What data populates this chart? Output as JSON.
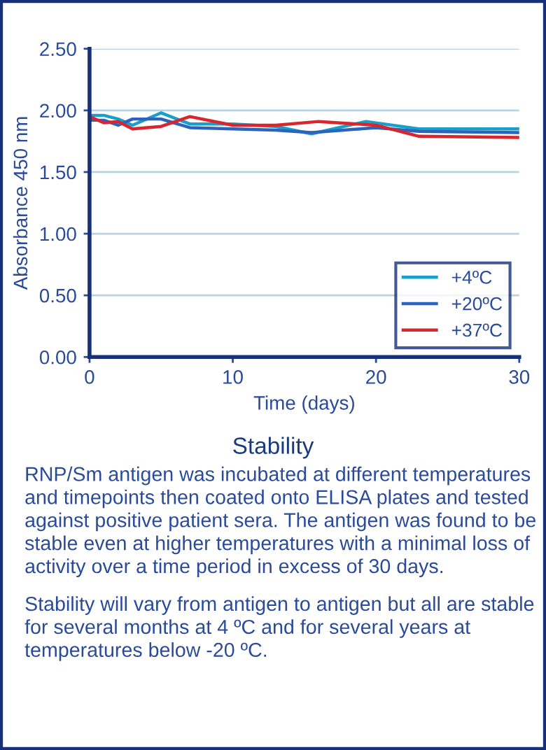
{
  "chart_data": {
    "type": "line",
    "title": "Stability",
    "xlabel": "Time (days)",
    "ylabel": "Absorbance 450 nm",
    "xlim": [
      0,
      30
    ],
    "xticks": [
      0,
      10,
      20,
      30
    ],
    "ylim": [
      0,
      2.5
    ],
    "yticks": [
      {
        "value": 0,
        "label": "0.00"
      },
      {
        "value": 0.5,
        "label": "0.50"
      },
      {
        "value": 1,
        "label": "1.00"
      },
      {
        "value": 1.5,
        "label": "1.50"
      },
      {
        "value": 2,
        "label": "2.00"
      },
      {
        "value": 2.5,
        "label": "2.50"
      }
    ],
    "grid": "y",
    "legend": "bottom right",
    "line_style": "solid",
    "series": [
      {
        "name": "+4ºC",
        "color": "#1aa0c8",
        "x": [
          0,
          1,
          2,
          3,
          5,
          7,
          10,
          13,
          15.5,
          19.3,
          23,
          30
        ],
        "values": [
          1.96,
          1.96,
          1.93,
          1.88,
          1.98,
          1.89,
          1.89,
          1.87,
          1.81,
          1.91,
          1.85,
          1.85
        ]
      },
      {
        "name": "+20ºC",
        "color": "#2c64bd",
        "x": [
          0,
          1,
          2,
          3,
          5,
          7,
          13,
          15.5,
          20,
          23,
          30
        ],
        "values": [
          1.92,
          1.92,
          1.88,
          1.93,
          1.93,
          1.86,
          1.84,
          1.82,
          1.86,
          1.83,
          1.82
        ]
      },
      {
        "name": "+37ºC",
        "color": "#d8262e",
        "x": [
          0,
          1,
          2,
          3,
          5,
          7,
          10,
          13,
          16,
          20,
          23,
          30
        ],
        "values": [
          1.95,
          1.9,
          1.91,
          1.85,
          1.87,
          1.95,
          1.88,
          1.88,
          1.91,
          1.88,
          1.79,
          1.78
        ]
      }
    ],
    "annotations": [
      "RNP/Sm antigen was incubated at different temperatures and timepoints then coated onto ELISA plates and tested against positive patient sera. The antigen was found to be stable even at higher temperatures with a minimal loss of activity over a time period in excess of 30 days.",
      "Stability will vary from antigen to antigen but all are stable for several months at 4 ºC and for several years at temperatures below -20 ºC."
    ]
  }
}
